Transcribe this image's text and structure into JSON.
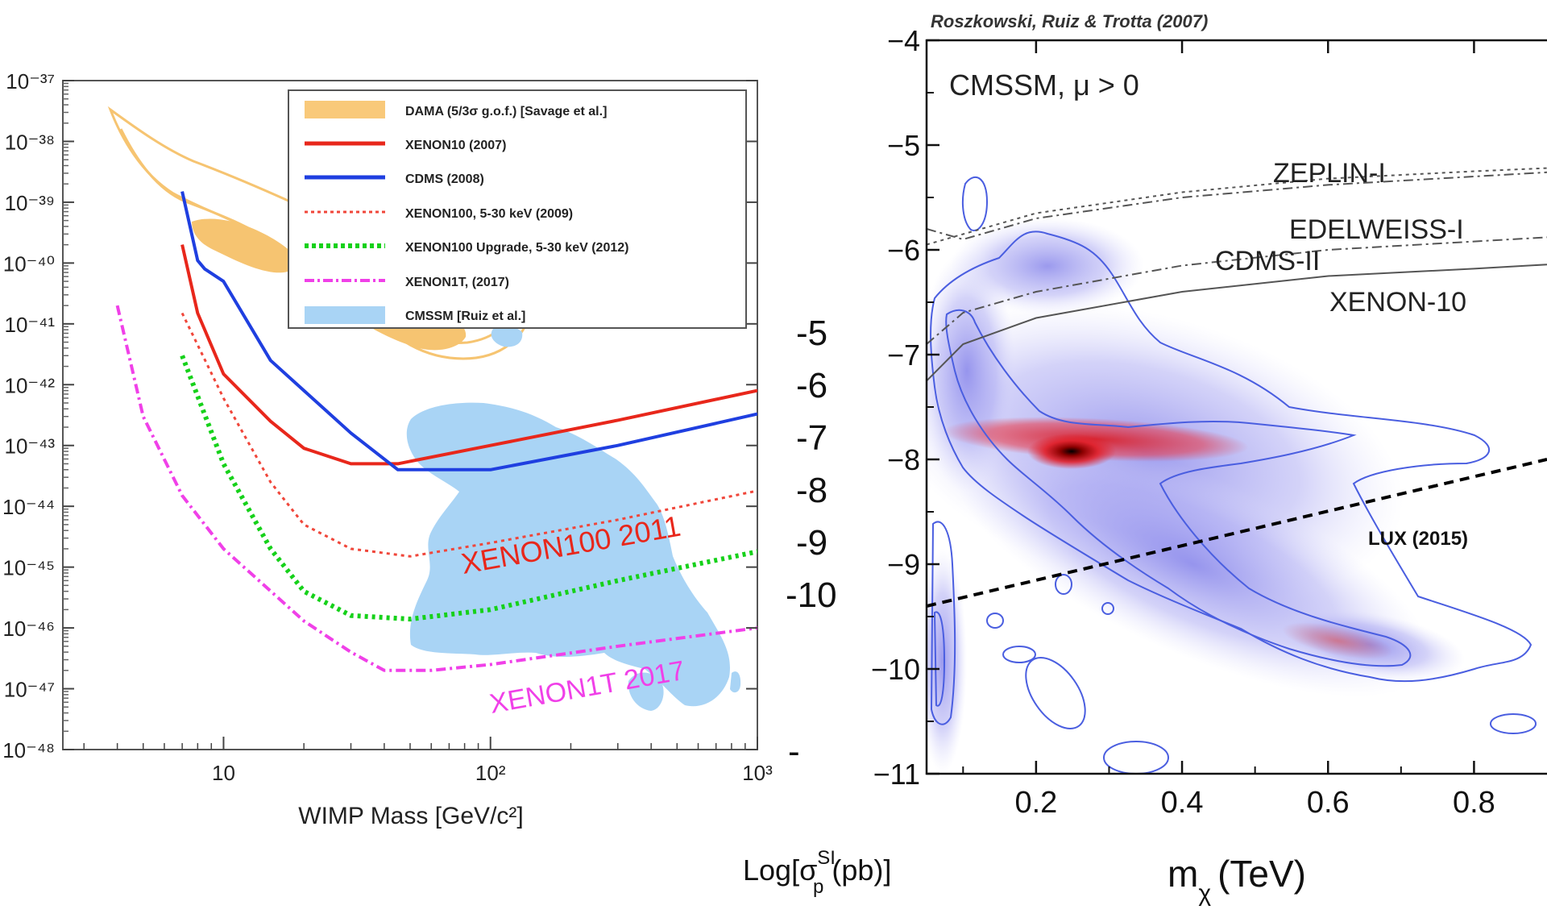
{
  "chart_data": [
    {
      "type": "line",
      "xlabel": "WIMP Mass [GeV/c²]",
      "xscale": "log",
      "yscale": "log",
      "xlim": [
        2.5,
        1000
      ],
      "ylim": [
        1e-48,
        1e-37
      ],
      "x_ticks": [
        "10",
        "10²",
        "10³"
      ],
      "y_ticks": [
        "10⁻³⁷",
        "10⁻³⁸",
        "10⁻³⁹",
        "10⁻⁴⁰",
        "10⁻⁴¹",
        "10⁻⁴²",
        "10⁻⁴³",
        "10⁻⁴⁴",
        "10⁻⁴⁵",
        "10⁻⁴⁶",
        "10⁻⁴⁷",
        "10⁻⁴⁸"
      ],
      "legend_position": "top-right",
      "legend": [
        {
          "label": "DAMA (5/3σ g.o.f.) [Savage et al.]",
          "style": "band",
          "color": "#f9c97a"
        },
        {
          "label": "XENON10 (2007)",
          "style": "solid",
          "color": "#e8271b"
        },
        {
          "label": "CDMS (2008)",
          "style": "solid",
          "color": "#1f3fe0"
        },
        {
          "label": "XENON100, 5-30 keV (2009)",
          "style": "dotted",
          "color": "#f0463a"
        },
        {
          "label": "XENON100 Upgrade, 5-30 keV (2012)",
          "style": "dotted",
          "color": "#16d11a"
        },
        {
          "label": "XENON1T, (2017)",
          "style": "dash-dot",
          "color": "#f040e8"
        },
        {
          "label": "CMSSM [Ruiz et al.]",
          "style": "band",
          "color": "#a9d4f5"
        }
      ],
      "series": [
        {
          "name": "XENON10 (2007)",
          "color": "#e8271b",
          "style": "solid",
          "x": [
            7,
            8,
            10,
            15,
            20,
            30,
            45,
            100,
            300,
            1000
          ],
          "y": [
            2e-40,
            1.5e-41,
            1.5e-42,
            2.5e-43,
            9e-44,
            5e-44,
            5e-44,
            1e-43,
            2.6e-43,
            8e-43
          ]
        },
        {
          "name": "CDMS (2008)",
          "color": "#1f3fe0",
          "style": "solid",
          "x": [
            7,
            8,
            8.5,
            10,
            15,
            20,
            30,
            45,
            100,
            300,
            1000
          ],
          "y": [
            1.5e-39,
            1.1e-40,
            8e-41,
            5e-41,
            2.5e-42,
            8e-43,
            1.6e-43,
            4e-44,
            4e-44,
            1e-43,
            3.3e-43
          ]
        },
        {
          "name": "XENON100, 5-30 keV (2009)",
          "color": "#f0463a",
          "style": "dotted",
          "x": [
            7,
            10,
            15,
            20,
            30,
            50,
            100,
            300,
            1000
          ],
          "y": [
            1.5e-41,
            6e-43,
            2.5e-44,
            5e-45,
            2e-45,
            1.5e-45,
            2.5e-45,
            6e-45,
            1.8e-44
          ]
        },
        {
          "name": "XENON100 Upgrade, 5-30 keV (2012)",
          "color": "#16d11a",
          "style": "dotted",
          "x": [
            7,
            10,
            15,
            20,
            30,
            50,
            100,
            300,
            1000
          ],
          "y": [
            3e-42,
            5e-44,
            2e-45,
            4e-46,
            1.6e-46,
            1.4e-46,
            2e-46,
            6e-46,
            1.8e-45
          ]
        },
        {
          "name": "XENON1T, (2017)",
          "color": "#f040e8",
          "style": "dash-dot",
          "x": [
            4,
            5,
            7,
            10,
            20,
            30,
            40,
            60,
            100,
            300,
            1000
          ],
          "y": [
            2e-41,
            3e-43,
            1.5e-44,
            2e-45,
            1.3e-46,
            4e-47,
            2e-47,
            2e-47,
            2.5e-47,
            5e-47,
            1e-46
          ]
        }
      ],
      "annotations": [
        "XENON100 2011",
        "XENON1T 2017"
      ],
      "middle_labels": [
        "-5",
        "-6",
        "-7",
        "-8",
        "-9",
        "-10",
        "-"
      ]
    },
    {
      "type": "heatmap",
      "title": "Roszkowski, Ruiz & Trotta (2007)",
      "annotation_main": "CMSSM, μ > 0",
      "xlabel": "m",
      "xlabel_sub": "χ",
      "xlabel_unit": "(TeV)",
      "ylabel": "Log[σ",
      "ylabel_sup": "SI",
      "ylabel_sub": "p",
      "ylabel_unit": "(pb)]",
      "xlim": [
        0.05,
        0.9
      ],
      "ylim": [
        -11,
        -4
      ],
      "x_ticks": [
        "0.2",
        "0.4",
        "0.6",
        "0.8"
      ],
      "y_ticks": [
        "−4",
        "−5",
        "−6",
        "−7",
        "−8",
        "−9",
        "−10",
        "−11"
      ],
      "x_tick_values": [
        0.2,
        0.4,
        0.6,
        0.8
      ],
      "y_tick_values": [
        -4,
        -5,
        -6,
        -7,
        -8,
        -9,
        -10,
        -11
      ],
      "curves": [
        {
          "name": "ZEPLIN-I",
          "style": "dotted",
          "x": [
            0.05,
            0.1,
            0.2,
            0.4,
            0.6,
            0.8,
            0.9
          ],
          "y": [
            -5.95,
            -5.85,
            -5.65,
            -5.45,
            -5.32,
            -5.25,
            -5.22
          ]
        },
        {
          "name": "EDELWEISS-I",
          "style": "dash-dot",
          "x": [
            0.05,
            0.1,
            0.2,
            0.4,
            0.6,
            0.8,
            0.9
          ],
          "y": [
            -5.8,
            -5.9,
            -5.7,
            -5.5,
            -5.38,
            -5.3,
            -5.26
          ]
        },
        {
          "name": "CDMS-II",
          "style": "dash-dot",
          "x": [
            0.05,
            0.1,
            0.2,
            0.4,
            0.6,
            0.8,
            0.9
          ],
          "y": [
            -6.9,
            -6.6,
            -6.4,
            -6.15,
            -6.0,
            -5.92,
            -5.88
          ]
        },
        {
          "name": "XENON-10",
          "style": "solid",
          "x": [
            0.05,
            0.1,
            0.2,
            0.4,
            0.6,
            0.8,
            0.9
          ],
          "y": [
            -7.25,
            -6.9,
            -6.65,
            -6.4,
            -6.25,
            -6.18,
            -6.14
          ]
        },
        {
          "name": "LUX (2015)",
          "style": "dashed",
          "x": [
            0.05,
            0.9
          ],
          "y": [
            -9.4,
            -8.0
          ]
        }
      ]
    }
  ]
}
